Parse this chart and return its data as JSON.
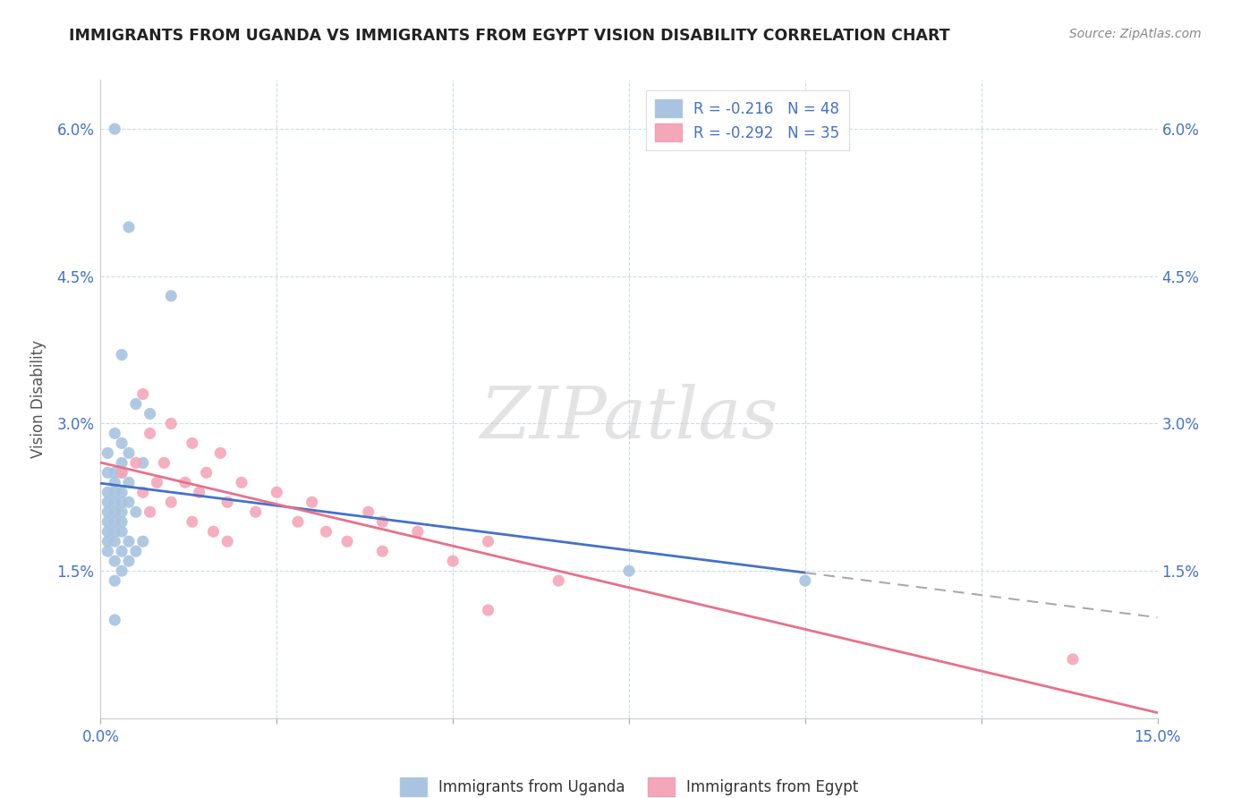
{
  "title": "IMMIGRANTS FROM UGANDA VS IMMIGRANTS FROM EGYPT VISION DISABILITY CORRELATION CHART",
  "source": "Source: ZipAtlas.com",
  "ylabel": "Vision Disability",
  "xlim": [
    0.0,
    0.15
  ],
  "ylim": [
    0.0,
    0.065
  ],
  "xticks": [
    0.0,
    0.025,
    0.05,
    0.075,
    0.1,
    0.125,
    0.15
  ],
  "xticklabels": [
    "0.0%",
    "",
    "",
    "",
    "",
    "",
    "15.0%"
  ],
  "yticks": [
    0.0,
    0.015,
    0.03,
    0.045,
    0.06
  ],
  "yticklabels": [
    "",
    "1.5%",
    "3.0%",
    "4.5%",
    "6.0%"
  ],
  "uganda_R": -0.216,
  "uganda_N": 48,
  "egypt_R": -0.292,
  "egypt_N": 35,
  "uganda_color": "#a8c4e0",
  "egypt_color": "#f4a7b9",
  "uganda_line_color": "#4472c4",
  "egypt_line_color": "#e8708a",
  "legend_uganda_label": "Immigrants from Uganda",
  "legend_egypt_label": "Immigrants from Egypt",
  "watermark": "ZIPatlas",
  "uganda_points": [
    [
      0.002,
      0.06
    ],
    [
      0.004,
      0.05
    ],
    [
      0.01,
      0.043
    ],
    [
      0.003,
      0.037
    ],
    [
      0.005,
      0.032
    ],
    [
      0.007,
      0.031
    ],
    [
      0.002,
      0.029
    ],
    [
      0.003,
      0.028
    ],
    [
      0.001,
      0.027
    ],
    [
      0.004,
      0.027
    ],
    [
      0.003,
      0.026
    ],
    [
      0.006,
      0.026
    ],
    [
      0.002,
      0.025
    ],
    [
      0.001,
      0.025
    ],
    [
      0.003,
      0.025
    ],
    [
      0.002,
      0.024
    ],
    [
      0.004,
      0.024
    ],
    [
      0.001,
      0.023
    ],
    [
      0.003,
      0.023
    ],
    [
      0.002,
      0.023
    ],
    [
      0.001,
      0.022
    ],
    [
      0.003,
      0.022
    ],
    [
      0.002,
      0.022
    ],
    [
      0.004,
      0.022
    ],
    [
      0.001,
      0.021
    ],
    [
      0.002,
      0.021
    ],
    [
      0.003,
      0.021
    ],
    [
      0.005,
      0.021
    ],
    [
      0.001,
      0.02
    ],
    [
      0.002,
      0.02
    ],
    [
      0.003,
      0.02
    ],
    [
      0.001,
      0.019
    ],
    [
      0.002,
      0.019
    ],
    [
      0.003,
      0.019
    ],
    [
      0.001,
      0.018
    ],
    [
      0.002,
      0.018
    ],
    [
      0.004,
      0.018
    ],
    [
      0.006,
      0.018
    ],
    [
      0.001,
      0.017
    ],
    [
      0.003,
      0.017
    ],
    [
      0.005,
      0.017
    ],
    [
      0.002,
      0.016
    ],
    [
      0.004,
      0.016
    ],
    [
      0.003,
      0.015
    ],
    [
      0.002,
      0.014
    ],
    [
      0.002,
      0.01
    ],
    [
      0.075,
      0.015
    ],
    [
      0.1,
      0.014
    ]
  ],
  "egypt_points": [
    [
      0.006,
      0.033
    ],
    [
      0.01,
      0.03
    ],
    [
      0.007,
      0.029
    ],
    [
      0.013,
      0.028
    ],
    [
      0.017,
      0.027
    ],
    [
      0.005,
      0.026
    ],
    [
      0.009,
      0.026
    ],
    [
      0.003,
      0.025
    ],
    [
      0.015,
      0.025
    ],
    [
      0.008,
      0.024
    ],
    [
      0.012,
      0.024
    ],
    [
      0.02,
      0.024
    ],
    [
      0.006,
      0.023
    ],
    [
      0.014,
      0.023
    ],
    [
      0.025,
      0.023
    ],
    [
      0.01,
      0.022
    ],
    [
      0.018,
      0.022
    ],
    [
      0.03,
      0.022
    ],
    [
      0.007,
      0.021
    ],
    [
      0.022,
      0.021
    ],
    [
      0.038,
      0.021
    ],
    [
      0.013,
      0.02
    ],
    [
      0.028,
      0.02
    ],
    [
      0.04,
      0.02
    ],
    [
      0.016,
      0.019
    ],
    [
      0.032,
      0.019
    ],
    [
      0.045,
      0.019
    ],
    [
      0.018,
      0.018
    ],
    [
      0.035,
      0.018
    ],
    [
      0.055,
      0.018
    ],
    [
      0.04,
      0.017
    ],
    [
      0.05,
      0.016
    ],
    [
      0.065,
      0.014
    ],
    [
      0.055,
      0.011
    ],
    [
      0.138,
      0.006
    ]
  ]
}
